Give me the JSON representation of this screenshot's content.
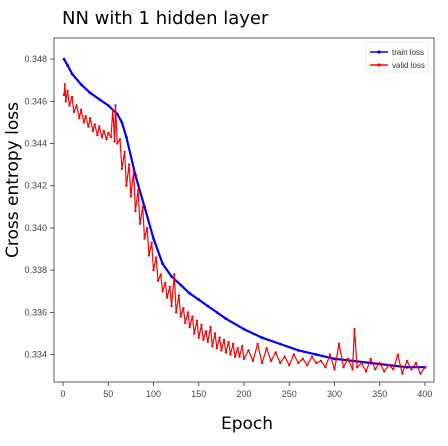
{
  "chart_data": {
    "type": "line",
    "title": "NN with 1 hidden layer",
    "xlabel": "Epoch",
    "ylabel": "Cross entropy loss",
    "xlim": [
      -10,
      410
    ],
    "ylim": [
      0.3327,
      0.349
    ],
    "xticks": [
      0,
      50,
      100,
      150,
      200,
      250,
      300,
      350,
      400
    ],
    "yticks": [
      0.334,
      0.336,
      0.338,
      0.34,
      0.342,
      0.344,
      0.346,
      0.348
    ],
    "ytick_labels": [
      "0.334",
      "0.336",
      "0.338",
      "0.340",
      "0.342",
      "0.344",
      "0.346",
      "0.348"
    ],
    "grid": false,
    "legend": "top-right",
    "series": [
      {
        "name": "train loss",
        "color": "#0000ff",
        "marker": "dot",
        "x": [
          1,
          5,
          10,
          20,
          30,
          40,
          50,
          60,
          65,
          70,
          80,
          90,
          100,
          110,
          120,
          130,
          140,
          150,
          160,
          170,
          180,
          200,
          220,
          240,
          260,
          280,
          300,
          320,
          340,
          360,
          380,
          400
        ],
        "y": [
          0.348,
          0.3477,
          0.3473,
          0.3468,
          0.3464,
          0.3461,
          0.3458,
          0.3454,
          0.345,
          0.3443,
          0.3425,
          0.341,
          0.3395,
          0.3383,
          0.3377,
          0.3373,
          0.3369,
          0.3366,
          0.3363,
          0.336,
          0.3357,
          0.3352,
          0.3348,
          0.3345,
          0.3342,
          0.334,
          0.3338,
          0.3337,
          0.3336,
          0.3335,
          0.3334,
          0.3334
        ]
      },
      {
        "name": "valid loss",
        "color": "#ff0000",
        "marker": "dot",
        "x": [
          1,
          2,
          3,
          5,
          7,
          10,
          12,
          15,
          18,
          20,
          23,
          25,
          28,
          30,
          33,
          35,
          38,
          40,
          43,
          45,
          48,
          50,
          53,
          55,
          57,
          58,
          60,
          63,
          65,
          68,
          70,
          73,
          75,
          78,
          80,
          83,
          85,
          88,
          90,
          93,
          95,
          98,
          100,
          103,
          105,
          108,
          110,
          113,
          115,
          118,
          120,
          123,
          125,
          128,
          130,
          133,
          135,
          138,
          140,
          143,
          145,
          148,
          150,
          153,
          155,
          158,
          160,
          163,
          165,
          168,
          170,
          173,
          175,
          178,
          180,
          183,
          185,
          188,
          190,
          193,
          195,
          198,
          200,
          205,
          210,
          215,
          220,
          225,
          230,
          235,
          240,
          245,
          250,
          255,
          260,
          265,
          270,
          275,
          280,
          285,
          290,
          295,
          300,
          305,
          310,
          315,
          320,
          322,
          325,
          330,
          335,
          340,
          345,
          350,
          355,
          360,
          365,
          370,
          375,
          380,
          385,
          390,
          395,
          400
        ],
        "y": [
          0.3463,
          0.3468,
          0.346,
          0.3465,
          0.3458,
          0.3462,
          0.3455,
          0.3458,
          0.3452,
          0.3456,
          0.345,
          0.3453,
          0.3448,
          0.3452,
          0.3446,
          0.3449,
          0.3444,
          0.3448,
          0.3443,
          0.3446,
          0.3442,
          0.3445,
          0.3443,
          0.3456,
          0.3441,
          0.3458,
          0.344,
          0.3442,
          0.3428,
          0.3436,
          0.342,
          0.343,
          0.3415,
          0.3427,
          0.3408,
          0.3418,
          0.3402,
          0.341,
          0.3395,
          0.34,
          0.3387,
          0.3393,
          0.338,
          0.3386,
          0.3375,
          0.3378,
          0.337,
          0.3374,
          0.3367,
          0.3372,
          0.3363,
          0.3378,
          0.336,
          0.3368,
          0.3358,
          0.3362,
          0.3355,
          0.336,
          0.3353,
          0.3358,
          0.335,
          0.3356,
          0.3348,
          0.3354,
          0.3347,
          0.3351,
          0.3346,
          0.3353,
          0.3344,
          0.335,
          0.3343,
          0.3348,
          0.3342,
          0.3347,
          0.3341,
          0.3346,
          0.334,
          0.3345,
          0.3339,
          0.3343,
          0.3339,
          0.3344,
          0.3338,
          0.3342,
          0.3337,
          0.3345,
          0.3336,
          0.3343,
          0.3337,
          0.3341,
          0.3336,
          0.3339,
          0.3335,
          0.334,
          0.3336,
          0.3338,
          0.3335,
          0.3339,
          0.3336,
          0.3337,
          0.3334,
          0.334,
          0.3333,
          0.3345,
          0.3334,
          0.3338,
          0.3333,
          0.3352,
          0.3334,
          0.3336,
          0.3332,
          0.3338,
          0.3333,
          0.3336,
          0.3332,
          0.3335,
          0.3333,
          0.334,
          0.3331,
          0.3337,
          0.3333,
          0.3336,
          0.3331,
          0.3334
        ]
      }
    ]
  }
}
